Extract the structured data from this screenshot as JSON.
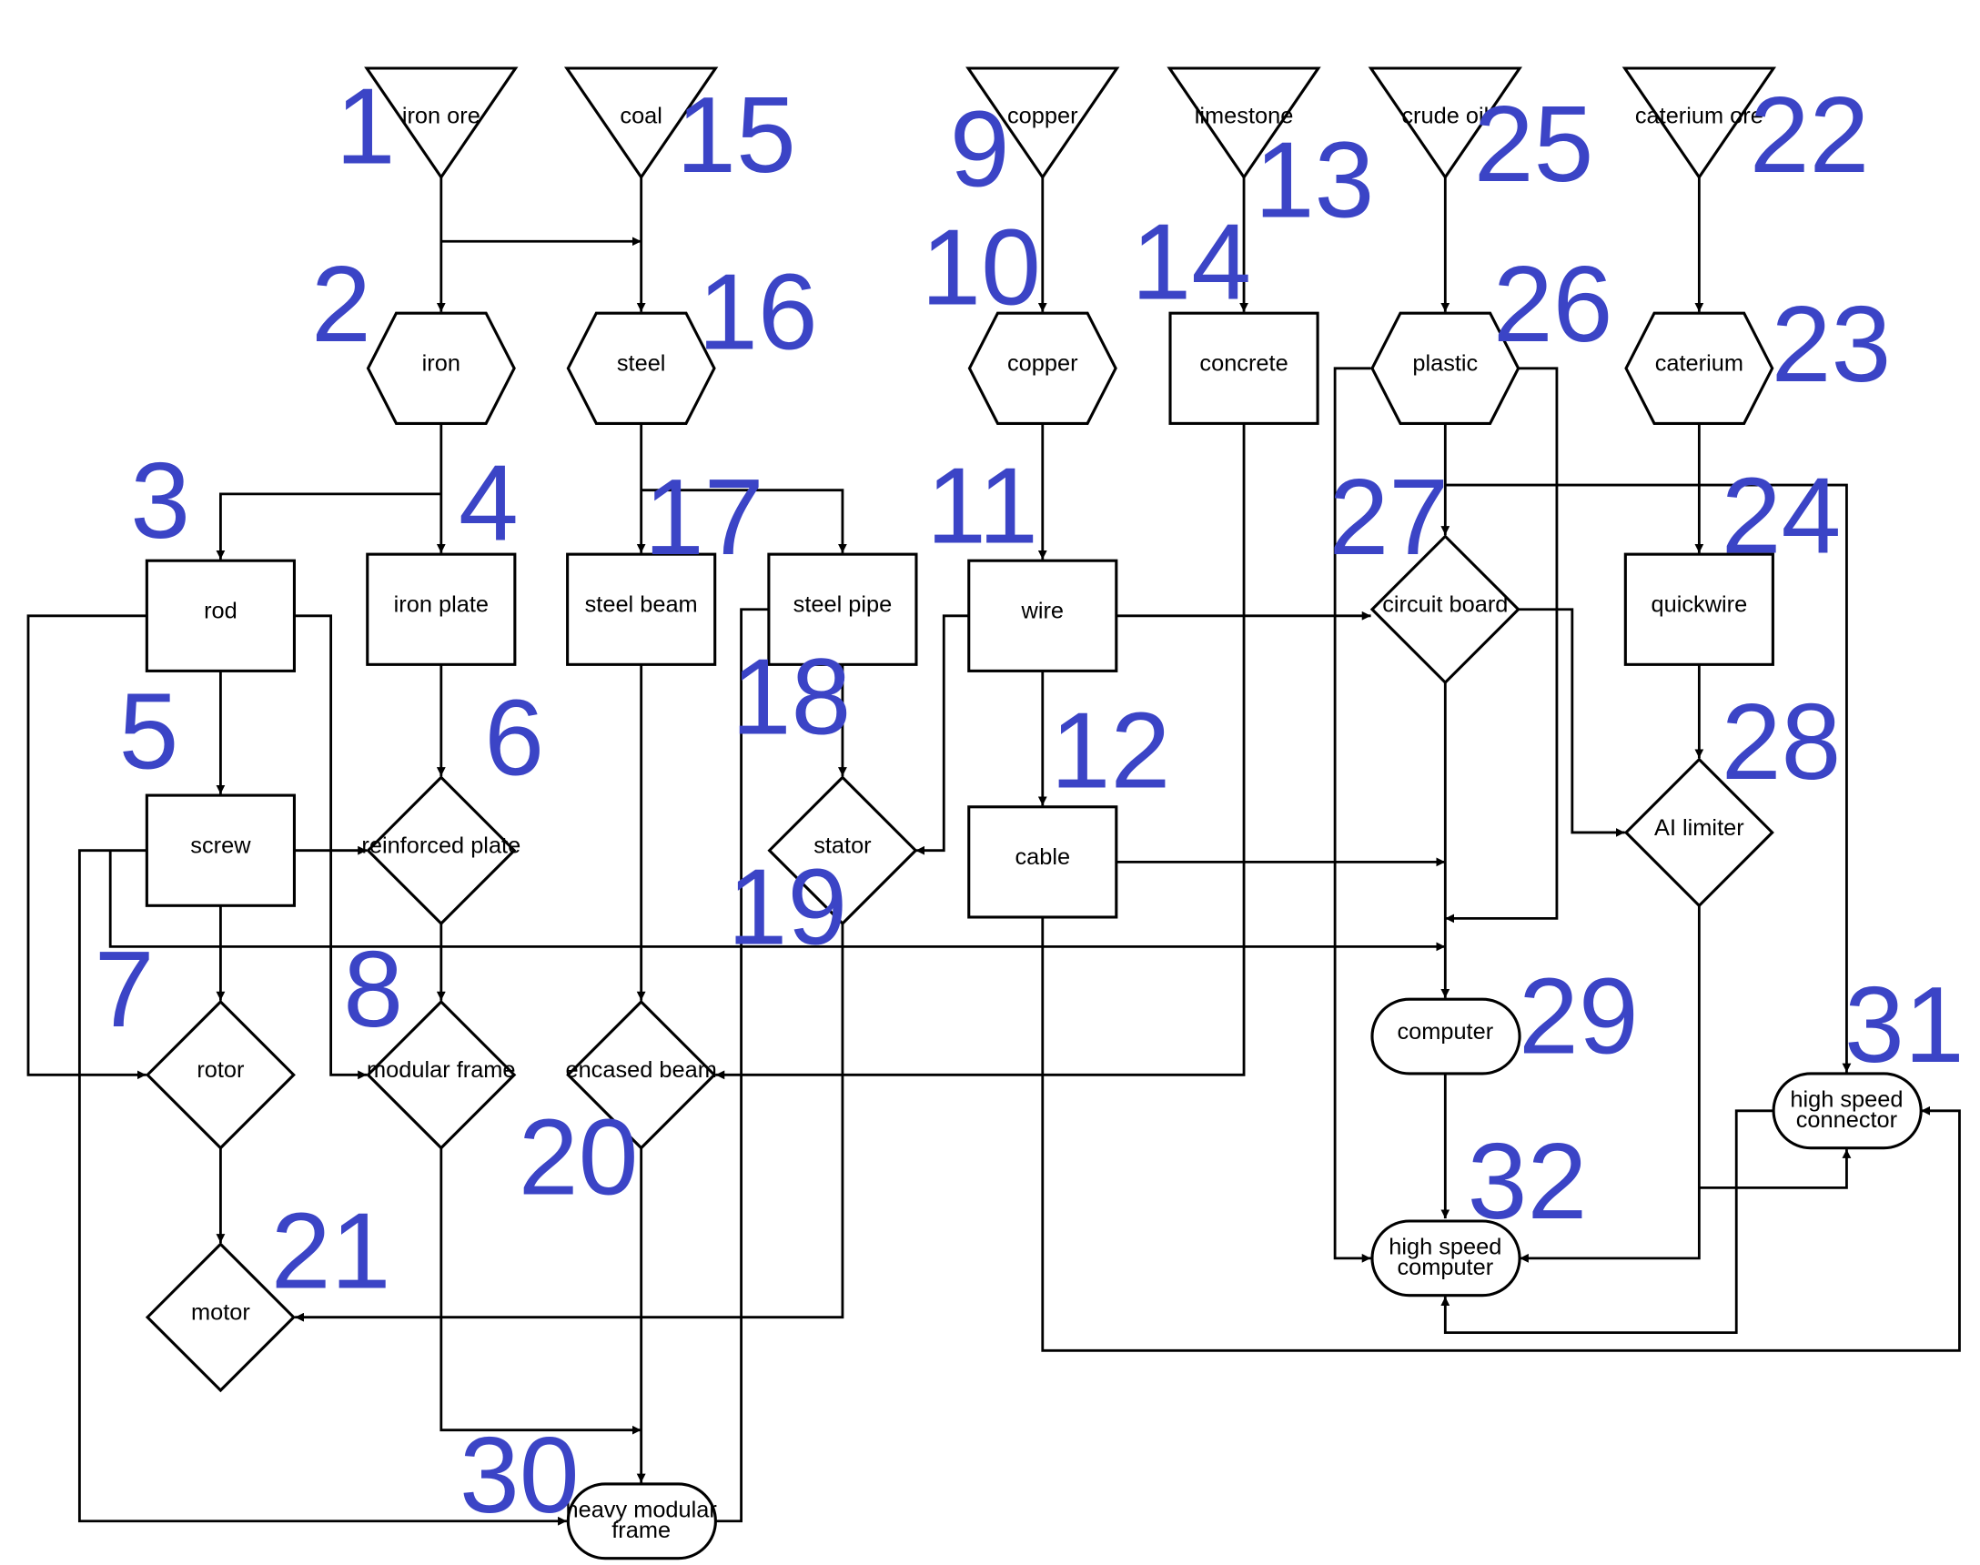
{
  "theme": {
    "number_color": "#3b44c6",
    "line_color": "#000000"
  },
  "nodes": {
    "n1": {
      "label": "iron ore",
      "number": "1"
    },
    "n15": {
      "label": "coal",
      "number": "15"
    },
    "n9": {
      "label": "copper",
      "number": "9"
    },
    "n13": {
      "label": "limestone",
      "number": "13"
    },
    "n25": {
      "label": "crude oil",
      "number": "25"
    },
    "n22": {
      "label": "caterium ore",
      "number": "22"
    },
    "n2": {
      "label": "iron",
      "number": "2"
    },
    "n16": {
      "label": "steel",
      "number": "16"
    },
    "n10": {
      "label": "copper",
      "number": "10"
    },
    "n14": {
      "label": "concrete",
      "number": "14"
    },
    "n26": {
      "label": "plastic",
      "number": "26"
    },
    "n23": {
      "label": "caterium",
      "number": "23"
    },
    "n3": {
      "label": "rod",
      "number": "3"
    },
    "n4": {
      "label": "iron plate",
      "number": "4"
    },
    "n17": {
      "label": "steel beam",
      "number": "17"
    },
    "n18": {
      "label": "steel pipe",
      "number": "18"
    },
    "n11": {
      "label": "wire",
      "number": "11"
    },
    "n27": {
      "label": "circuit board",
      "number": "27"
    },
    "n24": {
      "label": "quickwire",
      "number": "24"
    },
    "n5": {
      "label": "screw",
      "number": "5"
    },
    "n6": {
      "label": "reinforced plate",
      "number": "6"
    },
    "n19": {
      "label": "stator",
      "number": "19"
    },
    "n12": {
      "label": "cable",
      "number": "12"
    },
    "n28": {
      "label": "AI limiter",
      "number": "28"
    },
    "n7": {
      "label": "rotor",
      "number": "7"
    },
    "n8": {
      "label": "modular frame",
      "number": "8"
    },
    "n20": {
      "label": "encased beam",
      "number": "20"
    },
    "n29": {
      "label": "computer",
      "number": "29"
    },
    "n31": {
      "label": [
        "high speed",
        "connector"
      ],
      "number": "31"
    },
    "n21": {
      "label": "motor",
      "number": "21"
    },
    "n32": {
      "label": [
        "high speed",
        "computer"
      ],
      "number": "32"
    },
    "n30": {
      "label": [
        "heavy modular",
        "frame"
      ],
      "number": "30"
    }
  }
}
